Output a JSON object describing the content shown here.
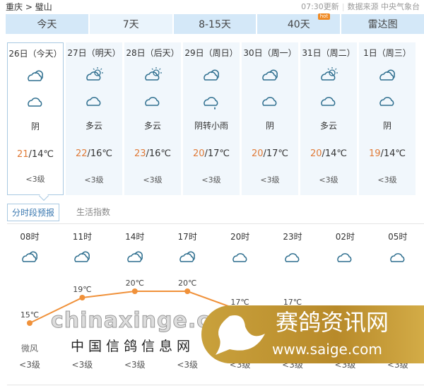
{
  "breadcrumb": {
    "province": "重庆",
    "sep": ">",
    "city": "璧山"
  },
  "update": {
    "time": "07:30更新",
    "source": "数据来源 中央气象台"
  },
  "tabs": [
    {
      "label": "今天"
    },
    {
      "label": "7天",
      "selected": true
    },
    {
      "label": "8-15天"
    },
    {
      "label": "40天",
      "badge": "hot"
    },
    {
      "label": "雷达图"
    }
  ],
  "colors": {
    "tab_bg": "#d4e8f8",
    "card_bg": "#f1f7fc",
    "high_temp": "#e07b38",
    "line": "#f0913a",
    "icon": "#2f6f8f"
  },
  "days": [
    {
      "date": "26日（今天）",
      "icon_day": "overcast",
      "icon_night": "cloudy-night",
      "weather": "阴",
      "high": "21",
      "low": "/14℃",
      "wind": "<3级",
      "selected": true
    },
    {
      "date": "27日（明天）",
      "icon_day": "partly-cloudy-day",
      "icon_night": "partly-cloudy-night",
      "weather": "多云",
      "high": "22",
      "low": "/16℃",
      "wind": "<3级"
    },
    {
      "date": "28日（后天）",
      "icon_day": "partly-cloudy-day",
      "icon_night": "partly-cloudy-night",
      "weather": "多云",
      "high": "23",
      "low": "/16℃",
      "wind": "<3级"
    },
    {
      "date": "29日（周日）",
      "icon_day": "overcast",
      "icon_night": "light-rain",
      "weather": "阴转小雨",
      "high": "20",
      "low": "/17℃",
      "wind": "<3级"
    },
    {
      "date": "30日（周一）",
      "icon_day": "overcast",
      "icon_night": "cloudy-night",
      "weather": "阴",
      "high": "20",
      "low": "/17℃",
      "wind": "<3级"
    },
    {
      "date": "31日（周二）",
      "icon_day": "partly-cloudy-day",
      "icon_night": "partly-cloudy-night",
      "weather": "多云",
      "high": "20",
      "low": "/14℃",
      "wind": "<3级"
    },
    {
      "date": "1日（周三）",
      "icon_day": "overcast",
      "icon_night": "cloudy-night",
      "weather": "阴",
      "high": "19",
      "low": "/14℃",
      "wind": "<3级"
    }
  ],
  "subtabs": [
    {
      "label": "分时段预报",
      "selected": true
    },
    {
      "label": "生活指数"
    }
  ],
  "hourly": [
    {
      "time": "08时",
      "icon": "overcast",
      "temp": 15,
      "temp_label": "15℃",
      "wind_dir": "微风",
      "wind": "<3级"
    },
    {
      "time": "11时",
      "icon": "overcast",
      "temp": 19,
      "temp_label": "19℃",
      "wind": "<3级"
    },
    {
      "time": "14时",
      "icon": "overcast",
      "temp": 20,
      "temp_label": "20℃",
      "wind": "<3级"
    },
    {
      "time": "17时",
      "icon": "overcast",
      "temp": 20,
      "temp_label": "20℃",
      "wind": "<3级"
    },
    {
      "time": "20时",
      "icon": "cloudy-night",
      "temp": 17,
      "temp_label": "17℃",
      "wind": "<3级"
    },
    {
      "time": "23时",
      "icon": "cloudy-night",
      "temp": 17,
      "temp_label": "17℃",
      "wind": "<3级"
    },
    {
      "time": "02时",
      "icon": "cloudy-night",
      "wind": "<3级"
    },
    {
      "time": "05时",
      "icon": "cloudy-night",
      "wind": "<3级"
    }
  ],
  "watermarks": {
    "w1": "chinaxinge.com",
    "w2": "中国信鸽信息网",
    "w3a": "赛鸽资讯网",
    "w3b": "www.saige.com"
  }
}
